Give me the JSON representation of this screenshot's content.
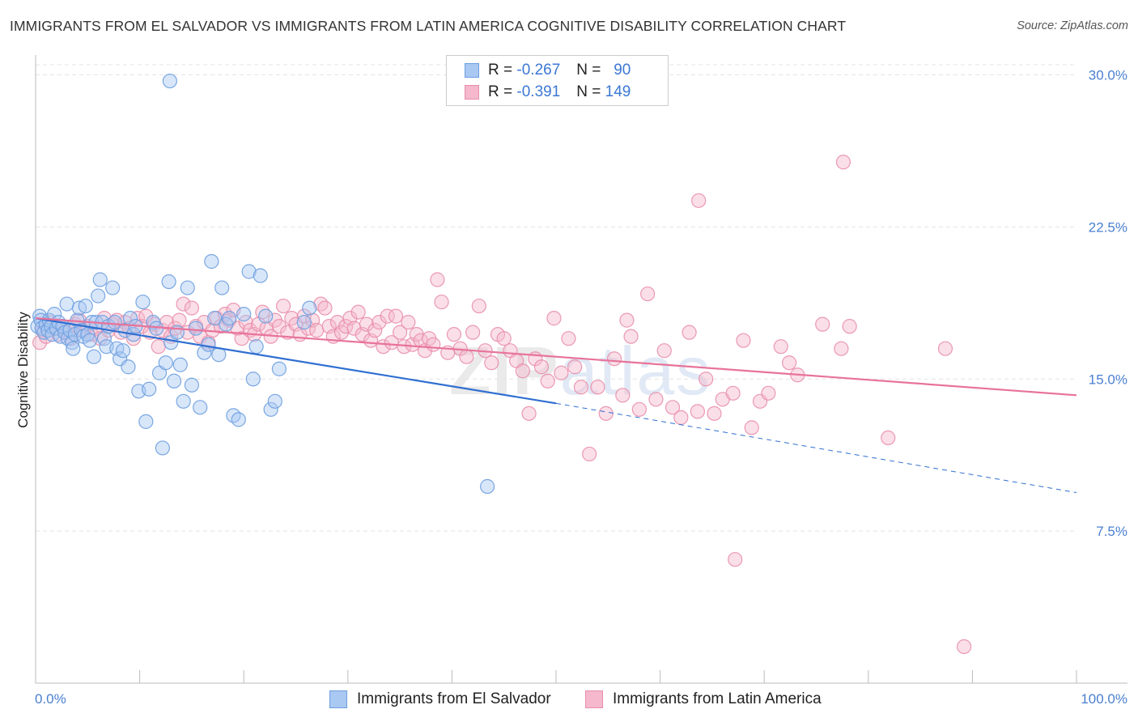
{
  "title": "IMMIGRANTS FROM EL SALVADOR VS IMMIGRANTS FROM LATIN AMERICA COGNITIVE DISABILITY CORRELATION CHART",
  "source": "Source: ZipAtlas.com",
  "watermark": {
    "part1": "ZIP",
    "part2": "atlas"
  },
  "legend": {
    "series1": {
      "r_label": "R =",
      "r_value": "-0.267",
      "n_label": "N =",
      "n_value": "90"
    },
    "series2": {
      "r_label": "R =",
      "r_value": "-0.391",
      "n_label": "N =",
      "n_value": "149"
    }
  },
  "bottom_legend": {
    "series1": "Immigrants from El Salvador",
    "series2": "Immigrants from Latin America"
  },
  "chart_data": {
    "type": "scatter",
    "title": "IMMIGRANTS FROM EL SALVADOR VS IMMIGRANTS FROM LATIN AMERICA COGNITIVE DISABILITY CORRELATION CHART",
    "xlabel": "",
    "ylabel": "Cognitive Disability",
    "xlim": [
      0,
      100
    ],
    "ylim": [
      0,
      30.5
    ],
    "x_tick_labels": [
      "0.0%",
      "100.0%"
    ],
    "y_ticks": [
      7.5,
      15.0,
      22.5,
      30.0
    ],
    "y_tick_labels": [
      "7.5%",
      "15.0%",
      "22.5%",
      "30.0%"
    ],
    "colors": {
      "series1_fill": "#a9c8f2",
      "series1_stroke": "#6d9ee0",
      "series1_line": "#2f6fd1",
      "series2_fill": "#f5b8cc",
      "series2_stroke": "#e98eab",
      "series2_line": "#e8739a"
    },
    "series": [
      {
        "name": "Immigrants from El Salvador",
        "r": -0.267,
        "n": 90,
        "trend": {
          "x0": 0,
          "y0": 18.0,
          "x1": 50,
          "y1": 13.8,
          "dash_to_x": 100,
          "dash_to_y": 9.4
        },
        "points": [
          [
            0.2,
            17.6
          ],
          [
            0.4,
            18.1
          ],
          [
            0.5,
            17.9
          ],
          [
            0.6,
            17.5
          ],
          [
            0.8,
            17.3
          ],
          [
            1.0,
            17.7
          ],
          [
            1.2,
            17.4
          ],
          [
            1.3,
            17.9
          ],
          [
            1.5,
            17.6
          ],
          [
            1.6,
            17.2
          ],
          [
            1.8,
            18.2
          ],
          [
            2.0,
            17.5
          ],
          [
            2.2,
            17.8
          ],
          [
            2.4,
            17.1
          ],
          [
            2.6,
            17.6
          ],
          [
            2.8,
            17.3
          ],
          [
            3.0,
            18.7
          ],
          [
            3.1,
            17.0
          ],
          [
            3.3,
            17.4
          ],
          [
            3.5,
            16.8
          ],
          [
            3.6,
            16.5
          ],
          [
            3.8,
            17.2
          ],
          [
            4.0,
            17.9
          ],
          [
            4.2,
            18.5
          ],
          [
            4.4,
            17.4
          ],
          [
            4.6,
            17.1
          ],
          [
            4.8,
            18.6
          ],
          [
            5.0,
            17.2
          ],
          [
            5.2,
            16.9
          ],
          [
            5.4,
            17.8
          ],
          [
            5.6,
            16.1
          ],
          [
            5.8,
            17.8
          ],
          [
            6.0,
            19.1
          ],
          [
            6.2,
            19.9
          ],
          [
            6.4,
            17.8
          ],
          [
            6.6,
            17.0
          ],
          [
            6.8,
            16.6
          ],
          [
            7.0,
            17.6
          ],
          [
            7.4,
            19.5
          ],
          [
            7.6,
            17.8
          ],
          [
            7.8,
            16.5
          ],
          [
            8.1,
            16.0
          ],
          [
            8.4,
            16.4
          ],
          [
            8.6,
            17.4
          ],
          [
            8.9,
            15.6
          ],
          [
            9.1,
            18.0
          ],
          [
            9.4,
            17.2
          ],
          [
            9.6,
            17.6
          ],
          [
            9.9,
            14.4
          ],
          [
            10.3,
            18.8
          ],
          [
            10.6,
            12.9
          ],
          [
            10.9,
            14.5
          ],
          [
            11.3,
            17.8
          ],
          [
            11.6,
            17.5
          ],
          [
            11.9,
            15.3
          ],
          [
            12.2,
            11.6
          ],
          [
            12.5,
            15.8
          ],
          [
            12.8,
            19.8
          ],
          [
            13.0,
            16.8
          ],
          [
            13.3,
            14.9
          ],
          [
            13.6,
            17.3
          ],
          [
            13.9,
            15.7
          ],
          [
            14.2,
            13.9
          ],
          [
            14.6,
            19.5
          ],
          [
            15.0,
            14.7
          ],
          [
            15.4,
            17.5
          ],
          [
            15.8,
            13.6
          ],
          [
            16.2,
            16.3
          ],
          [
            16.6,
            16.7
          ],
          [
            16.9,
            20.8
          ],
          [
            17.2,
            18.0
          ],
          [
            17.6,
            16.2
          ],
          [
            17.9,
            19.5
          ],
          [
            18.3,
            17.7
          ],
          [
            18.6,
            18.0
          ],
          [
            19.0,
            13.2
          ],
          [
            19.5,
            13.0
          ],
          [
            20.0,
            18.2
          ],
          [
            20.5,
            20.3
          ],
          [
            20.9,
            15.0
          ],
          [
            21.2,
            16.6
          ],
          [
            21.6,
            20.1
          ],
          [
            22.1,
            18.1
          ],
          [
            22.6,
            13.5
          ],
          [
            23.0,
            13.9
          ],
          [
            23.4,
            15.5
          ],
          [
            25.8,
            17.8
          ],
          [
            26.3,
            18.5
          ],
          [
            12.9,
            29.7
          ],
          [
            43.4,
            9.7
          ]
        ]
      },
      {
        "name": "Immigrants from Latin America",
        "r": -0.391,
        "n": 149,
        "trend": {
          "x0": 0,
          "y0": 18.0,
          "x1": 100,
          "y1": 14.2
        },
        "points": [
          [
            0.4,
            16.8
          ],
          [
            0.7,
            17.4
          ],
          [
            1.0,
            17.1
          ],
          [
            1.4,
            17.8
          ],
          [
            1.8,
            17.5
          ],
          [
            2.2,
            17.2
          ],
          [
            2.6,
            17.6
          ],
          [
            3.0,
            17.3
          ],
          [
            3.4,
            17.0
          ],
          [
            3.8,
            17.7
          ],
          [
            4.2,
            17.9
          ],
          [
            4.6,
            17.4
          ],
          [
            5.0,
            17.6
          ],
          [
            5.4,
            17.2
          ],
          [
            5.8,
            17.5
          ],
          [
            6.2,
            17.0
          ],
          [
            6.6,
            18.0
          ],
          [
            7.0,
            17.4
          ],
          [
            7.4,
            17.7
          ],
          [
            7.8,
            17.9
          ],
          [
            8.2,
            17.3
          ],
          [
            8.6,
            17.8
          ],
          [
            9.0,
            17.5
          ],
          [
            9.4,
            17.0
          ],
          [
            9.8,
            18.0
          ],
          [
            10.2,
            17.6
          ],
          [
            10.6,
            18.1
          ],
          [
            11.0,
            17.3
          ],
          [
            11.4,
            17.7
          ],
          [
            11.8,
            16.6
          ],
          [
            12.2,
            17.4
          ],
          [
            12.6,
            17.8
          ],
          [
            13.0,
            17.1
          ],
          [
            13.4,
            17.5
          ],
          [
            13.8,
            17.9
          ],
          [
            14.2,
            18.7
          ],
          [
            14.6,
            17.3
          ],
          [
            15.0,
            18.5
          ],
          [
            15.4,
            17.6
          ],
          [
            15.8,
            17.1
          ],
          [
            16.2,
            17.8
          ],
          [
            16.6,
            16.8
          ],
          [
            17.0,
            17.4
          ],
          [
            17.4,
            18.0
          ],
          [
            17.8,
            17.6
          ],
          [
            18.2,
            18.2
          ],
          [
            18.6,
            17.9
          ],
          [
            19.0,
            18.4
          ],
          [
            19.4,
            17.5
          ],
          [
            19.8,
            17.0
          ],
          [
            20.2,
            17.8
          ],
          [
            20.6,
            17.4
          ],
          [
            21.0,
            17.2
          ],
          [
            21.4,
            17.7
          ],
          [
            21.8,
            18.3
          ],
          [
            22.2,
            17.5
          ],
          [
            22.6,
            17.1
          ],
          [
            23.0,
            17.9
          ],
          [
            23.4,
            17.6
          ],
          [
            23.8,
            18.6
          ],
          [
            24.2,
            17.3
          ],
          [
            24.6,
            18.0
          ],
          [
            25.0,
            17.7
          ],
          [
            25.4,
            17.2
          ],
          [
            25.8,
            18.1
          ],
          [
            26.2,
            17.5
          ],
          [
            26.6,
            17.9
          ],
          [
            27.0,
            17.4
          ],
          [
            27.4,
            18.7
          ],
          [
            27.8,
            18.5
          ],
          [
            28.2,
            17.6
          ],
          [
            28.6,
            17.1
          ],
          [
            29.0,
            17.8
          ],
          [
            29.4,
            17.3
          ],
          [
            29.8,
            17.6
          ],
          [
            30.2,
            18.0
          ],
          [
            30.6,
            17.5
          ],
          [
            31.0,
            18.3
          ],
          [
            31.4,
            17.2
          ],
          [
            31.8,
            17.7
          ],
          [
            32.2,
            16.9
          ],
          [
            32.6,
            17.4
          ],
          [
            33.0,
            17.8
          ],
          [
            33.4,
            16.6
          ],
          [
            33.8,
            18.1
          ],
          [
            34.2,
            16.8
          ],
          [
            34.6,
            18.1
          ],
          [
            35.0,
            17.3
          ],
          [
            35.4,
            16.6
          ],
          [
            35.8,
            17.8
          ],
          [
            36.2,
            16.7
          ],
          [
            36.6,
            17.2
          ],
          [
            37.0,
            16.9
          ],
          [
            37.4,
            16.4
          ],
          [
            37.8,
            17.0
          ],
          [
            38.2,
            16.7
          ],
          [
            38.6,
            19.9
          ],
          [
            39.0,
            18.8
          ],
          [
            39.6,
            16.3
          ],
          [
            40.2,
            17.2
          ],
          [
            40.8,
            16.5
          ],
          [
            41.4,
            16.1
          ],
          [
            42.0,
            17.3
          ],
          [
            42.6,
            18.6
          ],
          [
            43.2,
            16.4
          ],
          [
            43.8,
            15.8
          ],
          [
            44.4,
            17.2
          ],
          [
            45.0,
            17.0
          ],
          [
            45.6,
            16.4
          ],
          [
            46.2,
            15.9
          ],
          [
            46.8,
            15.4
          ],
          [
            47.4,
            13.3
          ],
          [
            48.0,
            16.0
          ],
          [
            48.6,
            15.6
          ],
          [
            49.2,
            14.9
          ],
          [
            49.8,
            18.0
          ],
          [
            50.5,
            15.3
          ],
          [
            51.2,
            17.0
          ],
          [
            51.8,
            15.6
          ],
          [
            52.4,
            14.6
          ],
          [
            53.2,
            11.3
          ],
          [
            54.0,
            14.6
          ],
          [
            54.8,
            13.3
          ],
          [
            55.6,
            16.0
          ],
          [
            56.4,
            14.2
          ],
          [
            57.2,
            17.1
          ],
          [
            58.0,
            13.5
          ],
          [
            58.8,
            19.2
          ],
          [
            59.6,
            14.0
          ],
          [
            60.4,
            16.4
          ],
          [
            61.2,
            13.6
          ],
          [
            62.0,
            13.1
          ],
          [
            62.8,
            17.3
          ],
          [
            63.6,
            13.4
          ],
          [
            64.4,
            15.0
          ],
          [
            65.2,
            13.3
          ],
          [
            66.0,
            14.0
          ],
          [
            67.0,
            14.3
          ],
          [
            68.0,
            16.9
          ],
          [
            68.8,
            12.6
          ],
          [
            69.6,
            13.9
          ],
          [
            70.4,
            14.3
          ],
          [
            71.6,
            16.6
          ],
          [
            72.4,
            15.8
          ],
          [
            73.2,
            15.2
          ],
          [
            75.6,
            17.7
          ],
          [
            77.4,
            16.5
          ],
          [
            78.2,
            17.6
          ],
          [
            63.7,
            23.8
          ],
          [
            77.6,
            25.7
          ],
          [
            81.9,
            12.1
          ],
          [
            87.4,
            16.5
          ],
          [
            67.2,
            6.1
          ],
          [
            89.2,
            1.8
          ],
          [
            56.8,
            17.9
          ]
        ]
      }
    ]
  }
}
